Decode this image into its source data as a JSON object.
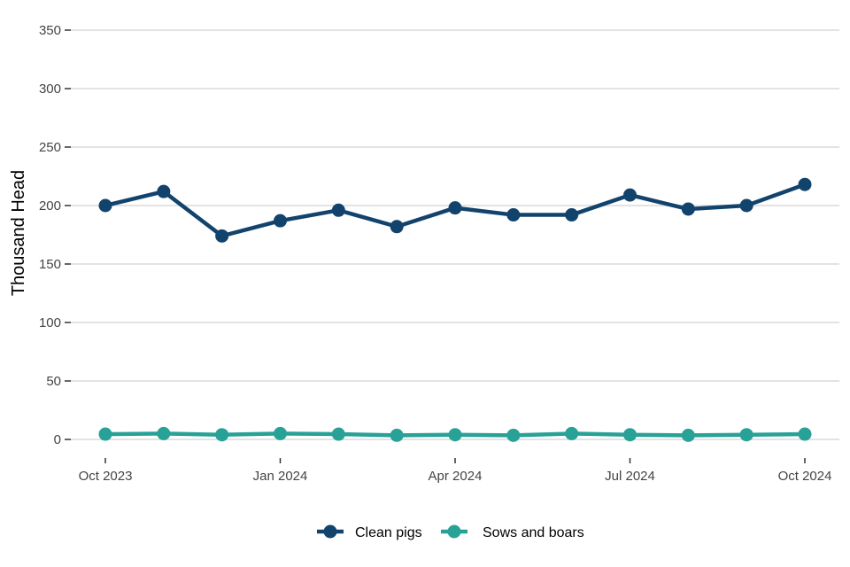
{
  "chart_data": {
    "type": "line",
    "title": "",
    "xlabel": "",
    "ylabel": "Thousand Head",
    "ylim": [
      0,
      350
    ],
    "yticks": [
      0,
      50,
      100,
      150,
      200,
      250,
      300,
      350
    ],
    "x": [
      "Oct 2023",
      "Nov 2023",
      "Dec 2023",
      "Jan 2024",
      "Feb 2024",
      "Mar 2024",
      "Apr 2024",
      "May 2024",
      "Jun 2024",
      "Jul 2024",
      "Aug 2024",
      "Sep 2024",
      "Oct 2024"
    ],
    "xtick_labels": [
      {
        "index": 0,
        "label": "Oct 2023"
      },
      {
        "index": 3,
        "label": "Jan 2024"
      },
      {
        "index": 6,
        "label": "Apr 2024"
      },
      {
        "index": 9,
        "label": "Jul 2024"
      },
      {
        "index": 12,
        "label": "Oct 2024"
      }
    ],
    "series": [
      {
        "name": "Clean pigs",
        "color": "#12436d",
        "values": [
          200,
          212,
          174,
          187,
          196,
          182,
          198,
          192,
          192,
          209,
          197,
          200,
          218
        ]
      },
      {
        "name": "Sows and boars",
        "color": "#28a197",
        "values": [
          4.5,
          5,
          4,
          5,
          4.5,
          3.5,
          4,
          3.5,
          5,
          4,
          3.5,
          4,
          4.5
        ]
      }
    ],
    "grid": true,
    "legend": "bottom-center"
  }
}
